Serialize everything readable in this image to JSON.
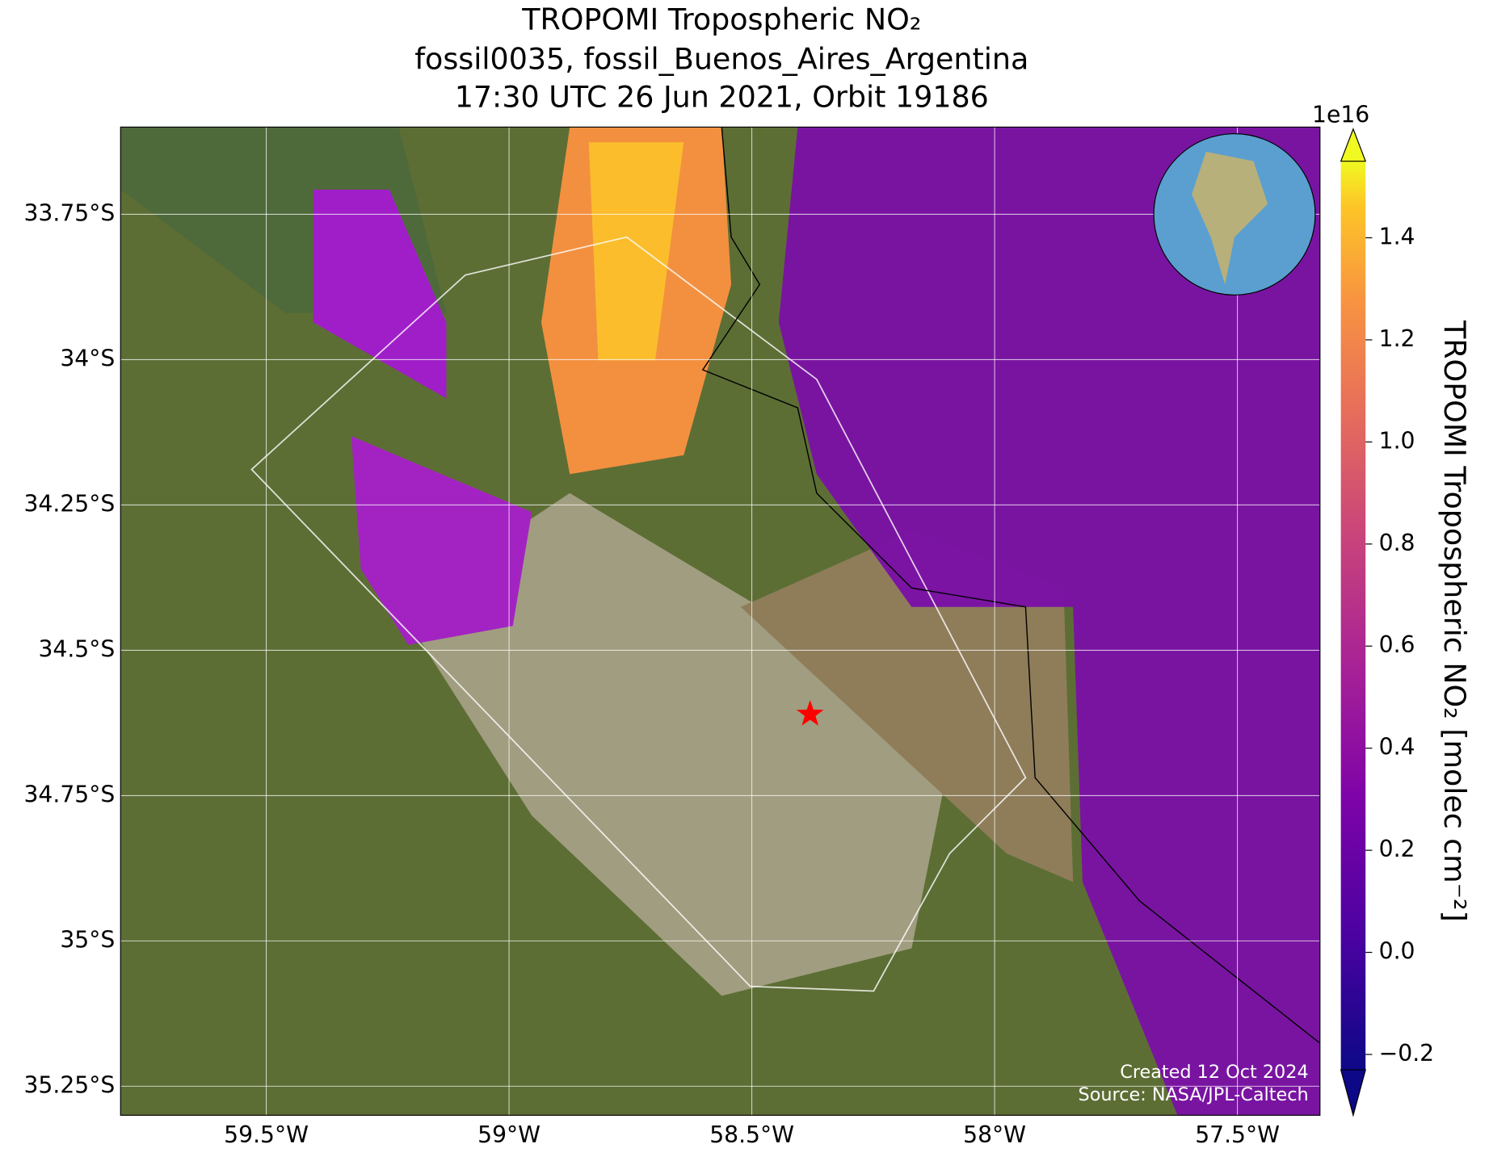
{
  "map": {
    "type": "map",
    "title": [
      "TROPOMI Tropospheric NO₂",
      "fossil0035, fossil_Buenos_Aires_Argentina",
      "17:30 UTC 26 Jun 2021, Orbit 19186"
    ],
    "xlim": [
      -59.8,
      -57.33
    ],
    "ylim": [
      -35.3,
      -33.6
    ],
    "xticks": [
      {
        "value": -59.5,
        "label": "59.5°W"
      },
      {
        "value": -59,
        "label": "59°W"
      },
      {
        "value": -58.5,
        "label": "58.5°W"
      },
      {
        "value": -58,
        "label": "58°W"
      },
      {
        "value": -57.5,
        "label": "57.5°W"
      }
    ],
    "yticks": [
      {
        "value": -33.75,
        "label": "33.75°S"
      },
      {
        "value": -34,
        "label": "34°S"
      },
      {
        "value": -34.25,
        "label": "34.25°S"
      },
      {
        "value": -34.5,
        "label": "34.5°S"
      },
      {
        "value": -34.75,
        "label": "34.75°S"
      },
      {
        "value": -35,
        "label": "35°S"
      },
      {
        "value": -35.25,
        "label": "35.25°S"
      }
    ],
    "grid": true,
    "site": {
      "lon": -58.38,
      "lat": -34.61,
      "color": "#ff0000"
    },
    "colorbar": {
      "label": "TROPOMI Tropospheric NO₂ [molec cm⁻²]",
      "multiplier": "1e16",
      "lim": [
        -0.23,
        1.55
      ],
      "ticks": [
        {
          "value": -0.2,
          "label": "−0.2"
        },
        {
          "value": 0,
          "label": "0.0"
        },
        0.2,
        0.4,
        0.6,
        0.8,
        {
          "value": 1,
          "label": "1.0"
        },
        1.2,
        1.4
      ]
    },
    "credits": [
      "Created 12 Oct 2024",
      "Source: NASA/JPL-Caltech"
    ]
  }
}
